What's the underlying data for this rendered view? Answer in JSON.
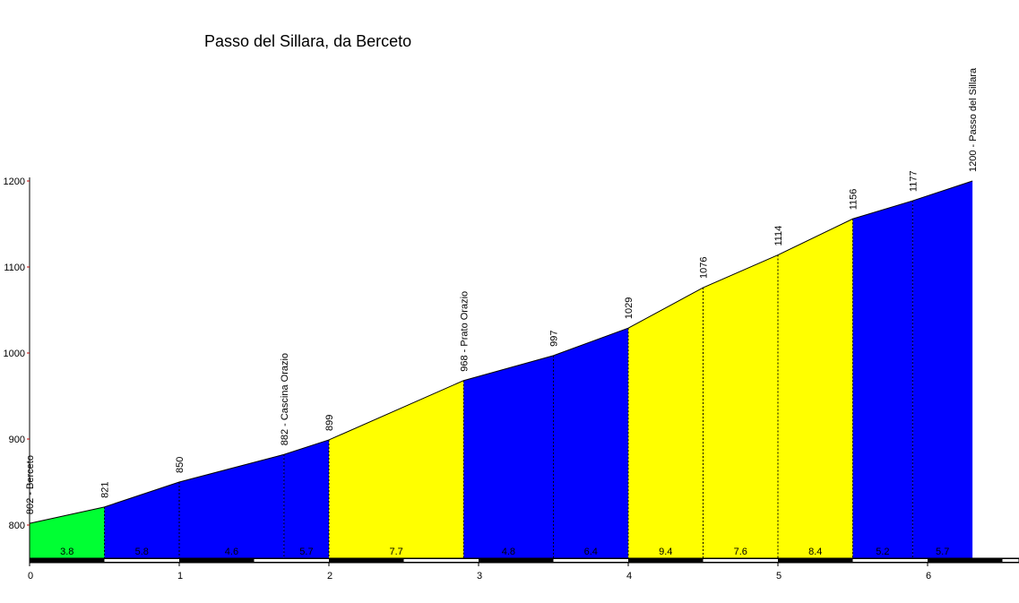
{
  "chart_data": {
    "type": "area",
    "title": "Passo del Sillara, da Berceto",
    "xlabel": "",
    "ylabel": "",
    "xlim": [
      0,
      6.3
    ],
    "ylim": [
      760,
      1200
    ],
    "x_ticks": [
      0,
      1,
      2,
      3,
      4,
      5,
      6
    ],
    "y_ticks": [
      800,
      900,
      1000,
      1100,
      1200
    ],
    "points": [
      {
        "x": 0.0,
        "elev": 802,
        "label": "802 - Berceto"
      },
      {
        "x": 0.5,
        "elev": 821,
        "label": "821"
      },
      {
        "x": 1.0,
        "elev": 850,
        "label": "850"
      },
      {
        "x": 1.7,
        "elev": 882,
        "label": "882 - Cascina Orazio"
      },
      {
        "x": 2.0,
        "elev": 899,
        "label": "899"
      },
      {
        "x": 2.9,
        "elev": 968,
        "label": "968 - Prato Orazio"
      },
      {
        "x": 3.5,
        "elev": 997,
        "label": "997"
      },
      {
        "x": 4.0,
        "elev": 1029,
        "label": "1029"
      },
      {
        "x": 4.5,
        "elev": 1076,
        "label": "1076"
      },
      {
        "x": 5.0,
        "elev": 1114,
        "label": "1114"
      },
      {
        "x": 5.5,
        "elev": 1156,
        "label": "1156"
      },
      {
        "x": 5.9,
        "elev": 1177,
        "label": "1177"
      },
      {
        "x": 6.3,
        "elev": 1200,
        "label": "1200 - Passo del Sillara"
      }
    ],
    "segments": [
      {
        "grade": "3.8",
        "color": "#00ff33"
      },
      {
        "grade": "5.8",
        "color": "#0000ff"
      },
      {
        "grade": "4.6",
        "color": "#0000ff"
      },
      {
        "grade": "5.7",
        "color": "#0000ff"
      },
      {
        "grade": "7.7",
        "color": "#ffff00"
      },
      {
        "grade": "4.8",
        "color": "#0000ff"
      },
      {
        "grade": "6.4",
        "color": "#0000ff"
      },
      {
        "grade": "9.4",
        "color": "#ffff00"
      },
      {
        "grade": "7.6",
        "color": "#ffff00"
      },
      {
        "grade": "8.4",
        "color": "#ffff00"
      },
      {
        "grade": "5.2",
        "color": "#0000ff"
      },
      {
        "grade": "5.7",
        "color": "#0000ff"
      }
    ],
    "grid": false,
    "legend": "none"
  }
}
